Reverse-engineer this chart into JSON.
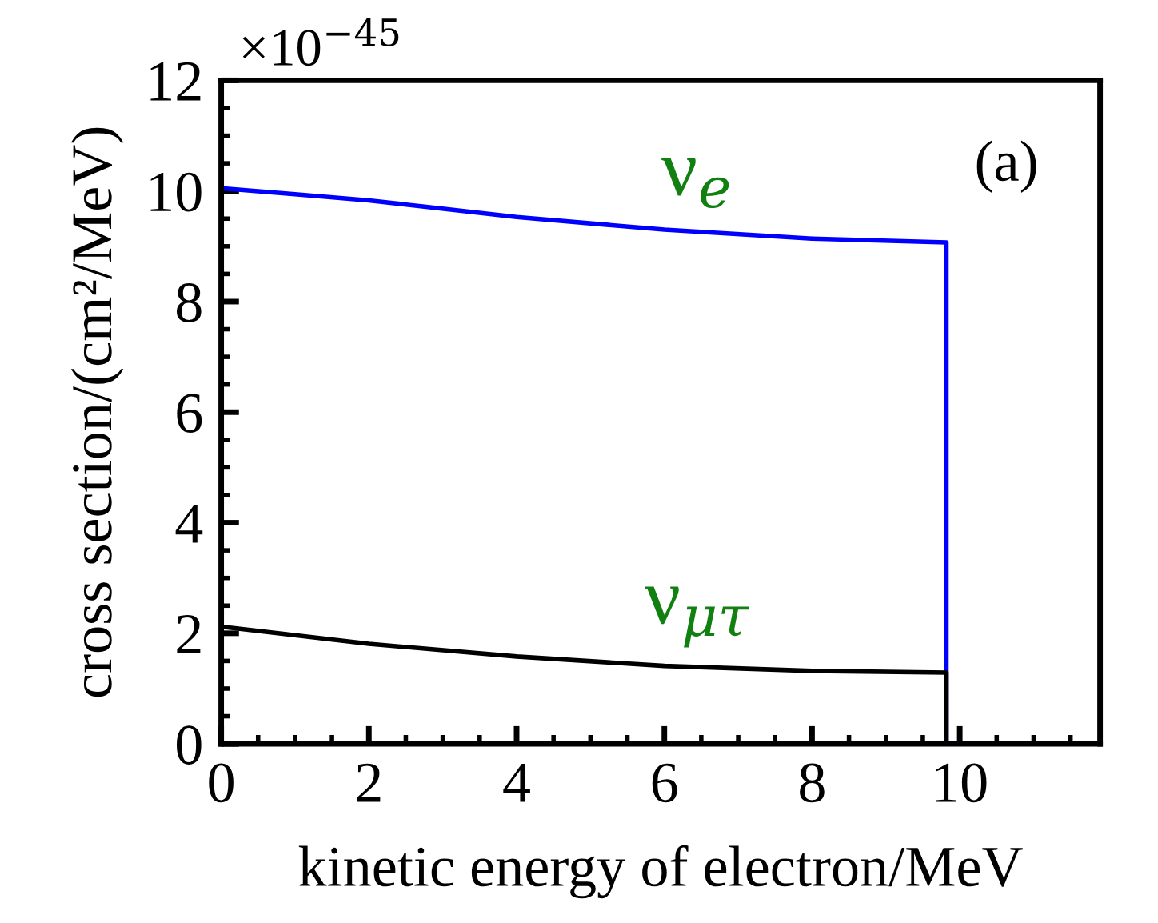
{
  "chart_data": {
    "type": "line",
    "xlabel": "kinetic energy of electron/MeV",
    "ylabel": "cross section/(cm²/MeV)",
    "xlim": [
      0,
      11.9
    ],
    "xticks": [
      0,
      2,
      4,
      6,
      8,
      10
    ],
    "ylim": [
      0,
      12
    ],
    "yticks": [
      0,
      2,
      4,
      6,
      8,
      10,
      12
    ],
    "grid": false,
    "legend": false,
    "marker": "none",
    "line_style": "solid",
    "series": [
      {
        "name": "ν$_{e}$",
        "color": "#0000ff",
        "x": [
          0,
          1,
          2,
          4,
          6,
          8,
          9.82,
          9.82,
          10.8
        ],
        "values": [
          10.05,
          9.94,
          9.83,
          9.53,
          9.3,
          9.14,
          9.07,
          0,
          0
        ]
      },
      {
        "name": "ν$_{μτ}$",
        "color": "#000000",
        "x": [
          0,
          2,
          4,
          6,
          8,
          9.82,
          9.82
        ],
        "values": [
          2.12,
          1.81,
          1.58,
          1.41,
          1.32,
          1.29,
          0
        ]
      }
    ],
    "annotations": [
      "(a)",
      "×10$^{−45}$"
    ]
  }
}
